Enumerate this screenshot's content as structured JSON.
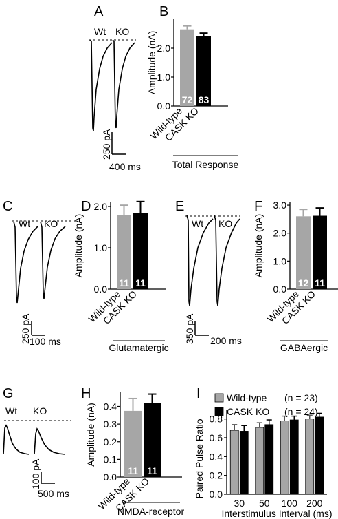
{
  "panels": [
    {
      "letter": "A"
    },
    {
      "letter": "B"
    },
    {
      "letter": "C"
    },
    {
      "letter": "D"
    },
    {
      "letter": "E"
    },
    {
      "letter": "F"
    },
    {
      "letter": "G"
    },
    {
      "letter": "H"
    },
    {
      "letter": "I"
    }
  ],
  "traces": {
    "A": {
      "wt_label": "Wt",
      "ko_label": "KO",
      "scale_y": "250 pA",
      "scale_x": "400 ms"
    },
    "C": {
      "wt_label": "Wt",
      "ko_label": "KO",
      "scale_y": "250 pA",
      "scale_x": "100 ms"
    },
    "E": {
      "wt_label": "Wt",
      "ko_label": "KO",
      "scale_y": "350 pA",
      "scale_x": "200 ms"
    },
    "G": {
      "wt_label": "Wt",
      "ko_label": "KO",
      "scale_y": "100 pA",
      "scale_x": "500 ms"
    }
  },
  "colors": {
    "wild_type": "#a6a6a6",
    "cask_ko": "#000000"
  },
  "chart_data": [
    {
      "panel": "B",
      "type": "bar",
      "categories": [
        "Wild-type",
        "CASK KO"
      ],
      "values": [
        2.65,
        2.42
      ],
      "errors": [
        0.12,
        0.1
      ],
      "n_labels": [
        "72",
        "83"
      ],
      "ylabel": "Amplitude (nA)",
      "xlabel": "Total Response",
      "ylim": [
        0,
        3.0
      ],
      "yticks": [
        "0.0",
        "1.0",
        "2.0"
      ],
      "ytick_values": [
        0,
        1,
        2
      ]
    },
    {
      "panel": "D",
      "type": "bar",
      "categories": [
        "Wild-type",
        "CASK KO"
      ],
      "values": [
        1.8,
        1.85
      ],
      "errors": [
        0.23,
        0.27
      ],
      "n_labels": [
        "11",
        "11"
      ],
      "ylabel": "Amplitude (nA)",
      "xlabel": "Glutamatergic",
      "ylim": [
        0,
        2.1
      ],
      "yticks": [
        "0.0",
        "1.0",
        "2.0"
      ],
      "ytick_values": [
        0,
        1,
        2
      ]
    },
    {
      "panel": "F",
      "type": "bar",
      "categories": [
        "Wild-type",
        "CASK KO"
      ],
      "values": [
        2.6,
        2.62
      ],
      "errors": [
        0.25,
        0.28
      ],
      "n_labels": [
        "12",
        "11"
      ],
      "ylabel": "Amplitude (nA)",
      "xlabel": "GABAergic",
      "ylim": [
        0,
        3.1
      ],
      "yticks": [
        "0.0",
        "1.0",
        "2.0",
        "3.0"
      ],
      "ytick_values": [
        0,
        1,
        2,
        3
      ]
    },
    {
      "panel": "H",
      "type": "bar",
      "categories": [
        "Wild-type",
        "CASK KO"
      ],
      "values": [
        0.375,
        0.42
      ],
      "errors": [
        0.07,
        0.05
      ],
      "n_labels": [
        "11",
        "11"
      ],
      "ylabel": "Amplitude (nA)",
      "xlabel": "NMDA-receptor",
      "ylim": [
        0,
        0.48
      ],
      "yticks": [
        "0.0",
        "0.1",
        "0.2",
        "0.3",
        "0.4"
      ],
      "ytick_values": [
        0,
        0.1,
        0.2,
        0.3,
        0.4
      ]
    },
    {
      "panel": "I",
      "type": "bar",
      "categories": [
        "30",
        "50",
        "100",
        "200"
      ],
      "series": [
        {
          "name": "Wild-type",
          "n": "(n = 23)",
          "values": [
            0.68,
            0.71,
            0.78,
            0.8
          ],
          "errors": [
            0.06,
            0.05,
            0.05,
            0.04
          ]
        },
        {
          "name": "CASK KO",
          "n": "(n = 24)",
          "values": [
            0.67,
            0.74,
            0.79,
            0.82
          ],
          "errors": [
            0.06,
            0.05,
            0.04,
            0.04
          ]
        }
      ],
      "ylabel": "Paired Pulse Ratio",
      "xlabel": "Interstimulus Interval (ms)",
      "ylim": [
        0,
        0.9
      ],
      "yticks": [
        "0.0",
        "0.2",
        "0.4",
        "0.6",
        "0.8"
      ],
      "ytick_values": [
        0,
        0.2,
        0.4,
        0.6,
        0.8
      ],
      "legend": "top"
    }
  ]
}
